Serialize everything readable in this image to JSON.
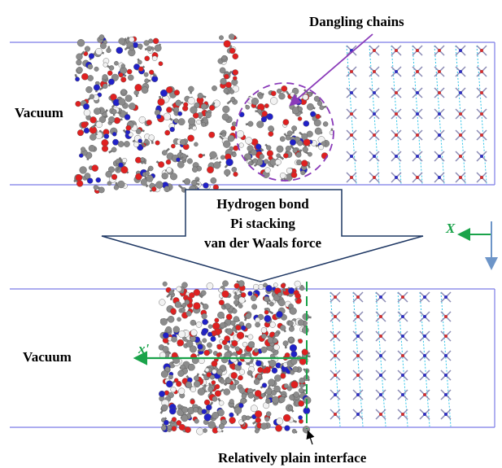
{
  "top_panel": {
    "annotation": "Dangling chains",
    "region_label": "Vacuum"
  },
  "arrow": {
    "lines": [
      "Hydrogen bond",
      "Pi stacking",
      "van der Waals force"
    ]
  },
  "axes": {
    "x_label": "X"
  },
  "bottom_panel": {
    "region_label": "Vacuum",
    "direction_label": "x'",
    "annotation": "Relatively plain interface"
  }
}
